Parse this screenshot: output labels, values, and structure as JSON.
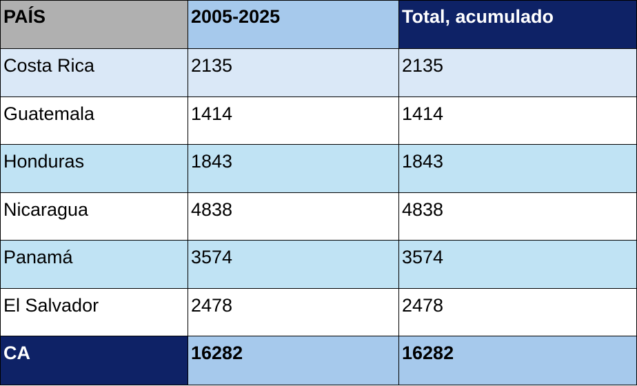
{
  "table": {
    "headers": [
      "PAÍS",
      "2005-2025",
      "Total, acumulado"
    ],
    "rows": [
      [
        "Costa Rica",
        "2135",
        "2135"
      ],
      [
        "Guatemala",
        "1414",
        "1414"
      ],
      [
        "Honduras",
        "1843",
        "1843"
      ],
      [
        "Nicaragua",
        "4838",
        "4838"
      ],
      [
        "Panamá",
        "3574",
        "3574"
      ],
      [
        "El Salvador",
        "2478",
        "2478"
      ]
    ],
    "total": [
      "CA",
      "16282",
      "16282"
    ]
  },
  "colors": {
    "header_country": "#b0b0b0",
    "header_period": "#a6c9ec",
    "header_total": "#0e2266",
    "row_light": "#dae8f7",
    "row_blue": "#c0e3f4",
    "row_white": "#ffffff",
    "total_label": "#0e2266",
    "total_values": "#a6c9ec"
  }
}
